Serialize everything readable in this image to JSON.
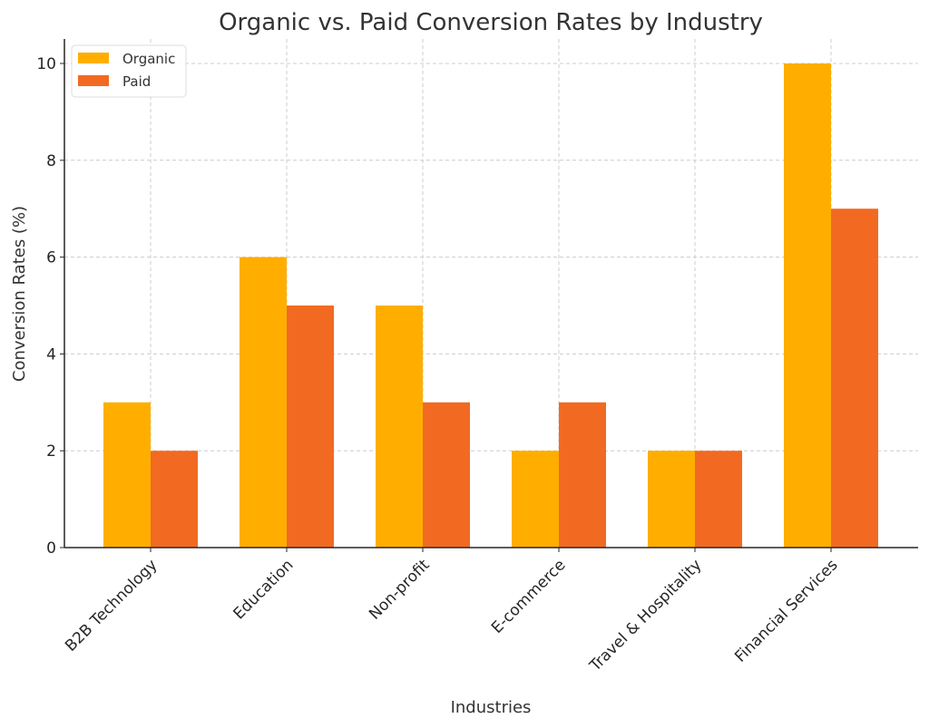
{
  "chart_data": {
    "type": "bar",
    "title": "Organic vs. Paid Conversion Rates by Industry",
    "xlabel": "Industries",
    "ylabel": "Conversion Rates (%)",
    "categories": [
      "B2B Technology",
      "Education",
      "Non-profit",
      "E-commerce",
      "Travel & Hospitality",
      "Financial Services"
    ],
    "series": [
      {
        "name": "Organic",
        "color": "#FFAE00",
        "values": [
          3,
          6,
          5,
          2,
          2,
          10
        ]
      },
      {
        "name": "Paid",
        "color": "#F26A21",
        "values": [
          2,
          5,
          3,
          3,
          2,
          7
        ]
      }
    ],
    "ylim": [
      0,
      10.5
    ],
    "yticks": [
      0,
      2,
      4,
      6,
      8,
      10
    ],
    "grid": true,
    "legend_position": "top-left"
  }
}
